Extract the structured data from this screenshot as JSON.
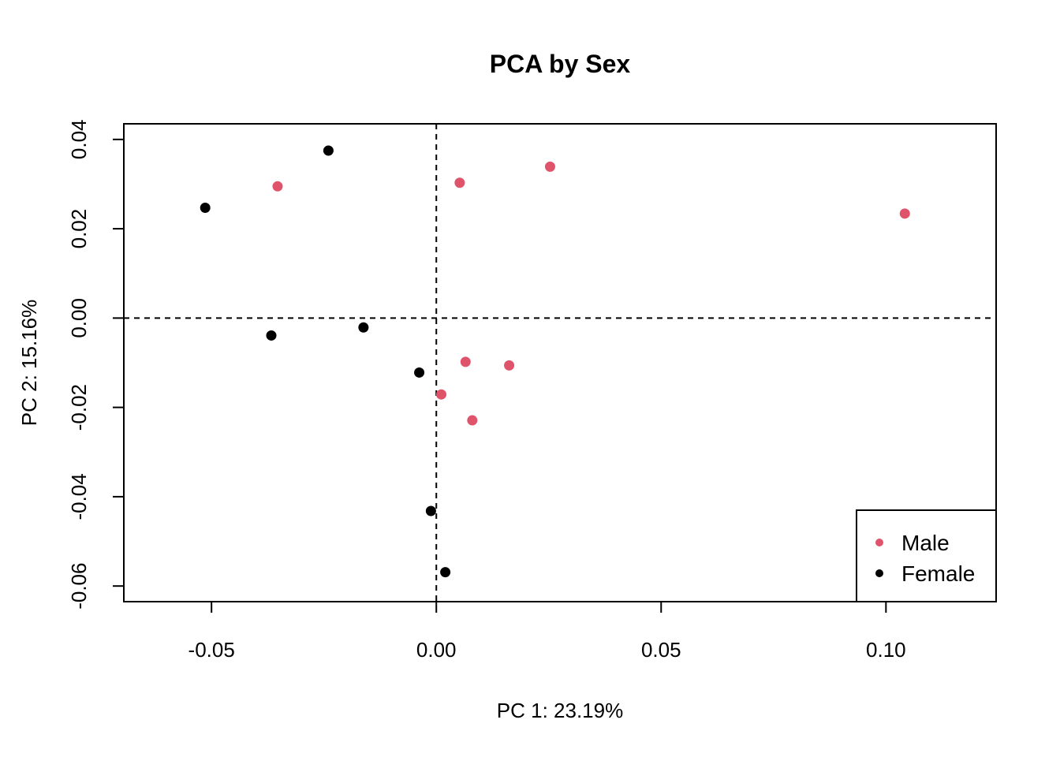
{
  "chart_data": {
    "type": "scatter",
    "title": "PCA by Sex",
    "xlabel": "PC 1: 23.19%",
    "ylabel": "PC 2: 15.16%",
    "xlim": [
      -0.0695,
      0.1245
    ],
    "ylim": [
      -0.0635,
      0.0435
    ],
    "xticks": [
      -0.05,
      0.0,
      0.05,
      0.1
    ],
    "xtick_labels": [
      "-0.05",
      "0.00",
      "0.05",
      "0.10"
    ],
    "yticks": [
      -0.06,
      -0.04,
      -0.02,
      0.0,
      0.02,
      0.04
    ],
    "ytick_labels": [
      "-0.06",
      "-0.04",
      "-0.02",
      "0.00",
      "0.02",
      "0.04"
    ],
    "reference_lines": {
      "x": 0.0,
      "y": 0.0,
      "style": "dashed"
    },
    "grid": false,
    "legend_position": "bottom-right",
    "series": [
      {
        "name": "Male",
        "color": "#DF536B",
        "points": [
          {
            "x": -0.0353,
            "y": 0.0295
          },
          {
            "x": 0.0052,
            "y": 0.0303
          },
          {
            "x": 0.0253,
            "y": 0.0339
          },
          {
            "x": 0.1042,
            "y": 0.0234
          },
          {
            "x": 0.0065,
            "y": -0.0098
          },
          {
            "x": 0.0162,
            "y": -0.0106
          },
          {
            "x": 0.0011,
            "y": -0.0171
          },
          {
            "x": 0.008,
            "y": -0.0229
          }
        ]
      },
      {
        "name": "Female",
        "color": "#000000",
        "points": [
          {
            "x": -0.024,
            "y": 0.0375
          },
          {
            "x": -0.0514,
            "y": 0.0247
          },
          {
            "x": -0.0367,
            "y": -0.0039
          },
          {
            "x": -0.0162,
            "y": -0.0021
          },
          {
            "x": -0.0038,
            "y": -0.0122
          },
          {
            "x": -0.0012,
            "y": -0.0432
          },
          {
            "x": 0.002,
            "y": -0.0569
          }
        ]
      }
    ]
  }
}
